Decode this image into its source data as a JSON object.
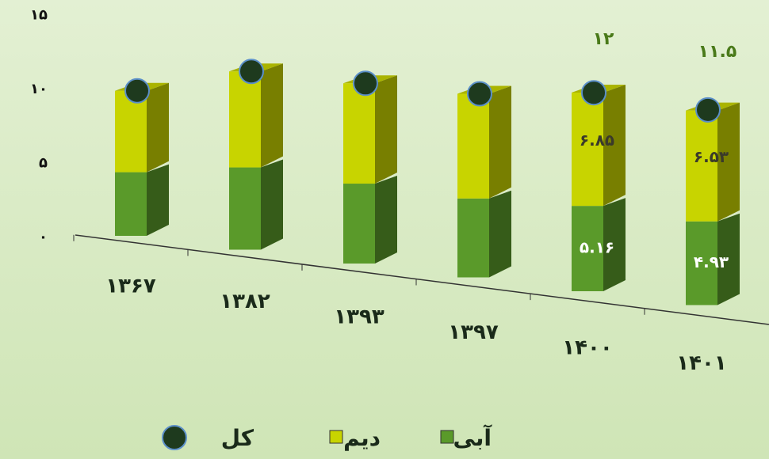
{
  "chart_data": {
    "type": "bar3d_stacked",
    "categories": [
      "۱۳۶۷",
      "۱۳۸۲",
      "۱۳۹۳",
      "۱۳۹۷",
      "۱۴۰۰",
      "۱۴۰۱"
    ],
    "series": [
      {
        "name": "آبی",
        "color": "#5a9a2a",
        "values": [
          4.3,
          5.4,
          5.1,
          4.9,
          5.16,
          4.93
        ],
        "value_labels": [
          null,
          null,
          null,
          null,
          "۵.۱۶",
          "۴.۹۳"
        ]
      },
      {
        "name": "دیم",
        "color": "#c8d400",
        "values": [
          5.5,
          6.3,
          6.4,
          6.5,
          6.85,
          6.53
        ],
        "value_labels": [
          null,
          null,
          null,
          null,
          "۶.۸۵",
          "۶.۵۳"
        ]
      },
      {
        "name": "کل",
        "color": "#1e3a1e",
        "values": [
          9.8,
          11.7,
          11.5,
          11.4,
          12,
          11.5
        ],
        "value_labels": [
          null,
          null,
          null,
          null,
          "۱۲",
          "۱۱.۵"
        ]
      }
    ],
    "ylim": [
      0,
      15
    ],
    "yticks": [
      {
        "value": 0,
        "label": "۰"
      },
      {
        "value": 5,
        "label": "۵"
      },
      {
        "value": 10,
        "label": "۱۰"
      },
      {
        "value": 15,
        "label": "۱۵"
      }
    ]
  }
}
